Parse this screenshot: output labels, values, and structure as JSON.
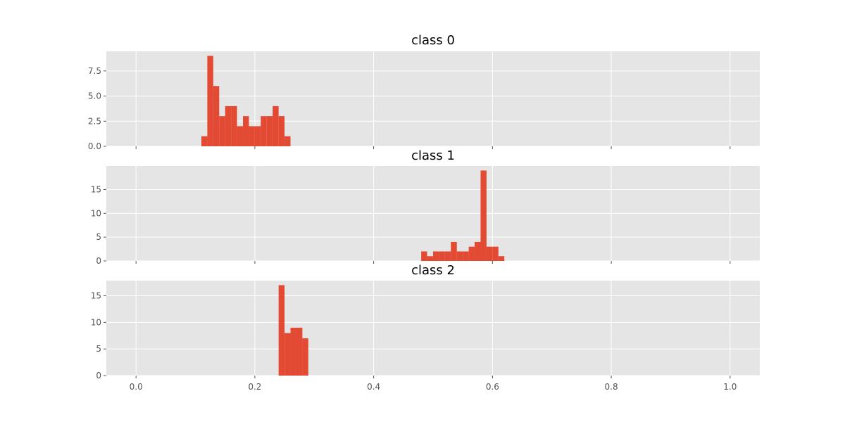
{
  "chart_data": [
    {
      "type": "bar",
      "title": "class 0",
      "xlabel": "",
      "ylabel": "",
      "xlim": [
        -0.05,
        1.05
      ],
      "ylim": [
        0,
        9.45
      ],
      "bin_width": 0.01,
      "yticks": [
        0.0,
        2.5,
        5.0,
        7.5
      ],
      "ytick_labels": [
        "0.0",
        "2.5",
        "5.0",
        "7.5"
      ],
      "xticks": [
        0.0,
        0.2,
        0.4,
        0.6,
        0.8,
        1.0
      ],
      "xtick_labels": [],
      "grid": true,
      "color": "#E24A33",
      "bins": [
        {
          "x": 0.11,
          "value": 1
        },
        {
          "x": 0.12,
          "value": 9
        },
        {
          "x": 0.13,
          "value": 6
        },
        {
          "x": 0.14,
          "value": 3
        },
        {
          "x": 0.15,
          "value": 4
        },
        {
          "x": 0.16,
          "value": 4
        },
        {
          "x": 0.17,
          "value": 2
        },
        {
          "x": 0.18,
          "value": 3
        },
        {
          "x": 0.19,
          "value": 2
        },
        {
          "x": 0.2,
          "value": 2
        },
        {
          "x": 0.21,
          "value": 3
        },
        {
          "x": 0.22,
          "value": 3
        },
        {
          "x": 0.23,
          "value": 4
        },
        {
          "x": 0.24,
          "value": 3
        },
        {
          "x": 0.25,
          "value": 1
        }
      ]
    },
    {
      "type": "bar",
      "title": "class 1",
      "xlabel": "",
      "ylabel": "",
      "xlim": [
        -0.05,
        1.05
      ],
      "ylim": [
        0,
        19.95
      ],
      "bin_width": 0.01,
      "yticks": [
        0,
        5,
        10,
        15
      ],
      "ytick_labels": [
        "0",
        "5",
        "10",
        "15"
      ],
      "xticks": [
        0.0,
        0.2,
        0.4,
        0.6,
        0.8,
        1.0
      ],
      "xtick_labels": [],
      "grid": true,
      "color": "#E24A33",
      "bins": [
        {
          "x": 0.48,
          "value": 2
        },
        {
          "x": 0.49,
          "value": 1
        },
        {
          "x": 0.5,
          "value": 2
        },
        {
          "x": 0.51,
          "value": 2
        },
        {
          "x": 0.52,
          "value": 2
        },
        {
          "x": 0.53,
          "value": 4
        },
        {
          "x": 0.54,
          "value": 2
        },
        {
          "x": 0.55,
          "value": 2
        },
        {
          "x": 0.56,
          "value": 3
        },
        {
          "x": 0.57,
          "value": 4
        },
        {
          "x": 0.58,
          "value": 19
        },
        {
          "x": 0.59,
          "value": 3
        },
        {
          "x": 0.6,
          "value": 3
        },
        {
          "x": 0.61,
          "value": 1
        }
      ]
    },
    {
      "type": "bar",
      "title": "class 2",
      "xlabel": "",
      "ylabel": "",
      "xlim": [
        -0.05,
        1.05
      ],
      "ylim": [
        0,
        17.85
      ],
      "bin_width": 0.01,
      "yticks": [
        0,
        5,
        10,
        15
      ],
      "ytick_labels": [
        "0",
        "5",
        "10",
        "15"
      ],
      "xticks": [
        0.0,
        0.2,
        0.4,
        0.6,
        0.8,
        1.0
      ],
      "xtick_labels": [
        "0.0",
        "0.2",
        "0.4",
        "0.6",
        "0.8",
        "1.0"
      ],
      "grid": true,
      "color": "#E24A33",
      "bins": [
        {
          "x": 0.24,
          "value": 17
        },
        {
          "x": 0.25,
          "value": 8
        },
        {
          "x": 0.26,
          "value": 9
        },
        {
          "x": 0.27,
          "value": 9
        },
        {
          "x": 0.28,
          "value": 7
        }
      ]
    }
  ],
  "style": {
    "axes_background": "#E5E5E5",
    "grid_color": "#FFFFFF",
    "tick_color": "#555555"
  }
}
